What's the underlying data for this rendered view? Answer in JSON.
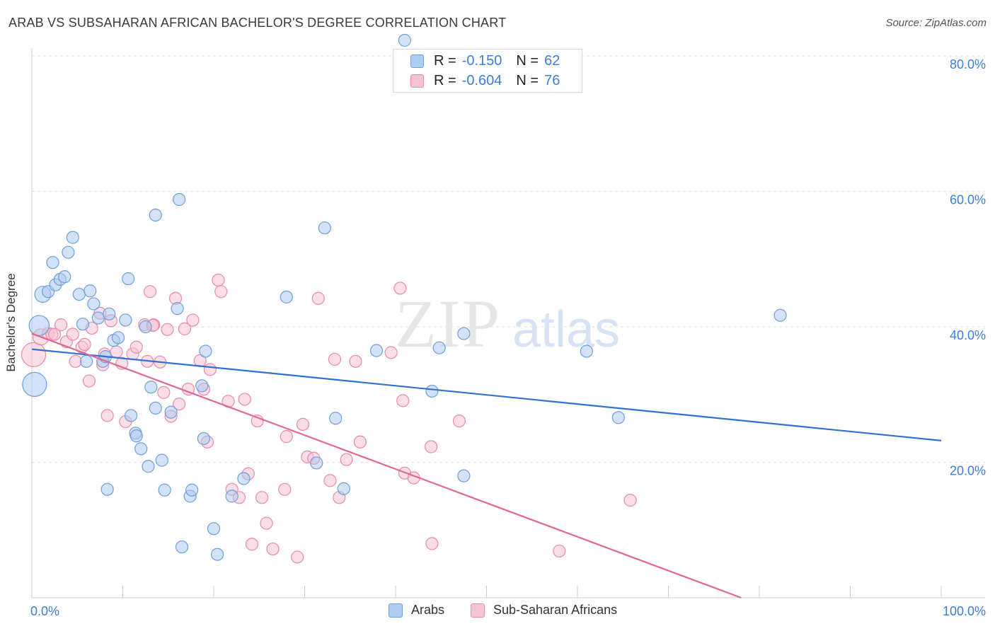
{
  "header": {
    "title": "ARAB VS SUBSAHARAN AFRICAN BACHELOR'S DEGREE CORRELATION CHART",
    "source": "Source: ZipAtlas.com"
  },
  "watermark": {
    "zip": "ZIP",
    "atlas": "atlas"
  },
  "legend": {
    "rows": [
      {
        "r_label": "R = ",
        "r_value": "-0.150",
        "n_label": "N = ",
        "n_value": "62"
      },
      {
        "r_label": "R = ",
        "r_value": "-0.604",
        "n_label": "N = ",
        "n_value": "76"
      }
    ]
  },
  "colors": {
    "arabs_fill": "#aecbf0",
    "arabs_stroke": "#6d9fdc",
    "arabs_line": "#2f72d2",
    "ssa_fill": "#f6c3d3",
    "ssa_stroke": "#e98aa9",
    "ssa_line": "#e0678f",
    "tick_label": "#3a7fd9",
    "grid": "#e0e0e0"
  },
  "chart_data": {
    "type": "scatter",
    "title": "ARAB VS SUBSAHARAN AFRICAN BACHELOR'S DEGREE CORRELATION CHART",
    "xlabel": "",
    "ylabel": "Bachelor's Degree",
    "xlim": [
      0,
      100
    ],
    "ylim": [
      0,
      80
    ],
    "x_tick_labels": [
      "0.0%",
      "100.0%"
    ],
    "y_ticks": [
      20,
      40,
      60,
      80
    ],
    "y_tick_labels": [
      "20.0%",
      "40.0%",
      "60.0%",
      "80.0%"
    ],
    "grid": true,
    "legend_position": "bottom",
    "series": [
      {
        "name": "Arabs",
        "trend": {
          "x0": 0,
          "y0": 36.7,
          "x1": 100,
          "y1": 23.2
        },
        "points": [
          [
            0.3,
            31.5,
            3
          ],
          [
            0.8,
            40.2,
            2.5
          ],
          [
            1.2,
            44.8,
            2
          ],
          [
            1.8,
            45.2,
            1.5
          ],
          [
            2.3,
            49.5,
            1.5
          ],
          [
            2.6,
            46.2,
            1.5
          ],
          [
            3.1,
            47.0,
            1.5
          ],
          [
            3.6,
            47.4,
            1.5
          ],
          [
            4.0,
            51.0,
            1.5
          ],
          [
            4.5,
            53.2,
            1.5
          ],
          [
            5.2,
            44.8,
            1.5
          ],
          [
            5.6,
            40.4,
            1.5
          ],
          [
            6.0,
            34.9,
            1.5
          ],
          [
            6.4,
            45.3,
            1.5
          ],
          [
            6.8,
            43.4,
            1.5
          ],
          [
            7.3,
            41.3,
            1.5
          ],
          [
            7.8,
            34.9,
            1.5
          ],
          [
            8.1,
            35.6,
            1.5
          ],
          [
            8.5,
            41.9,
            1.5
          ],
          [
            9.0,
            38.0,
            1.5
          ],
          [
            9.5,
            38.4,
            1.5
          ],
          [
            10.3,
            41.0,
            1.5
          ],
          [
            10.6,
            47.1,
            1.5
          ],
          [
            10.9,
            26.9,
            1.5
          ],
          [
            11.4,
            24.3,
            1.5
          ],
          [
            12.0,
            22.0,
            1.5
          ],
          [
            12.5,
            40.0,
            1.5
          ],
          [
            12.8,
            19.4,
            1.5
          ],
          [
            13.1,
            31.1,
            1.5
          ],
          [
            13.6,
            28.0,
            1.5
          ],
          [
            13.6,
            56.5,
            1.5
          ],
          [
            14.3,
            20.3,
            1.5
          ],
          [
            14.6,
            15.9,
            1.5
          ],
          [
            15.3,
            27.4,
            1.5
          ],
          [
            16.0,
            42.7,
            1.5
          ],
          [
            16.2,
            58.8,
            1.5
          ],
          [
            16.5,
            7.5,
            1.5
          ],
          [
            17.4,
            15.0,
            1.5
          ],
          [
            17.6,
            15.9,
            1.5
          ],
          [
            18.7,
            31.3,
            1.5
          ],
          [
            18.9,
            23.5,
            1.5
          ],
          [
            19.1,
            36.4,
            1.5
          ],
          [
            20.0,
            10.2,
            1.5
          ],
          [
            20.4,
            6.4,
            1.5
          ],
          [
            22.0,
            15.0,
            1.5
          ],
          [
            23.3,
            17.6,
            1.5
          ],
          [
            8.3,
            16.0,
            1.5
          ],
          [
            11.5,
            23.9,
            1.5
          ],
          [
            28.0,
            44.4,
            1.5
          ],
          [
            31.3,
            19.9,
            1.5
          ],
          [
            32.2,
            54.6,
            1.5
          ],
          [
            33.4,
            26.5,
            1.5
          ],
          [
            34.3,
            16.1,
            1.5
          ],
          [
            37.9,
            36.5,
            1.5
          ],
          [
            41.0,
            82.3,
            1.5
          ],
          [
            44.0,
            30.5,
            1.5
          ],
          [
            44.8,
            36.9,
            1.5
          ],
          [
            47.5,
            39.0,
            1.5
          ],
          [
            47.5,
            18.0,
            1.5
          ],
          [
            61.0,
            36.4,
            1.5
          ],
          [
            64.5,
            26.6,
            1.5
          ],
          [
            82.3,
            41.7,
            1.5
          ]
        ]
      },
      {
        "name": "Sub-Saharan Africans",
        "trend": {
          "x0": 0,
          "y0": 39.0,
          "x1": 78,
          "y1": 0
        },
        "points": [
          [
            0.2,
            35.9,
            3
          ],
          [
            1.0,
            38.5,
            2
          ],
          [
            1.8,
            39.0,
            1.5
          ],
          [
            2.2,
            38.9,
            1.5
          ],
          [
            2.5,
            38.9,
            1.5
          ],
          [
            3.2,
            40.3,
            1.5
          ],
          [
            3.8,
            37.8,
            1.5
          ],
          [
            4.5,
            38.9,
            1.5
          ],
          [
            4.8,
            34.9,
            1.5
          ],
          [
            5.5,
            37.0,
            1.5
          ],
          [
            5.8,
            37.4,
            1.5
          ],
          [
            6.3,
            32.0,
            1.5
          ],
          [
            6.6,
            39.8,
            1.5
          ],
          [
            7.5,
            42.0,
            1.5
          ],
          [
            7.8,
            34.4,
            1.5
          ],
          [
            8.0,
            36.0,
            1.5
          ],
          [
            8.3,
            26.9,
            1.5
          ],
          [
            8.7,
            40.9,
            1.5
          ],
          [
            9.3,
            36.3,
            1.5
          ],
          [
            9.9,
            34.6,
            1.5
          ],
          [
            10.3,
            26.0,
            1.5
          ],
          [
            11.1,
            36.0,
            1.5
          ],
          [
            11.5,
            37.0,
            1.5
          ],
          [
            12.4,
            40.3,
            1.5
          ],
          [
            12.7,
            34.9,
            1.5
          ],
          [
            13.0,
            45.2,
            1.5
          ],
          [
            13.4,
            40.3,
            1.5
          ],
          [
            14.1,
            34.8,
            1.5
          ],
          [
            14.5,
            30.3,
            1.5
          ],
          [
            14.9,
            39.6,
            1.5
          ],
          [
            15.3,
            26.8,
            1.5
          ],
          [
            15.8,
            44.2,
            1.5
          ],
          [
            16.2,
            28.6,
            1.5
          ],
          [
            16.8,
            39.7,
            1.5
          ],
          [
            17.2,
            30.8,
            1.5
          ],
          [
            17.7,
            41.0,
            1.5
          ],
          [
            18.5,
            35.0,
            1.5
          ],
          [
            18.9,
            30.8,
            1.5
          ],
          [
            19.3,
            23.0,
            1.5
          ],
          [
            19.6,
            33.7,
            1.5
          ],
          [
            20.5,
            46.9,
            1.5
          ],
          [
            20.8,
            45.2,
            1.5
          ],
          [
            21.6,
            29.0,
            1.5
          ],
          [
            22.0,
            16.0,
            1.5
          ],
          [
            22.8,
            14.8,
            1.5
          ],
          [
            23.4,
            29.3,
            1.5
          ],
          [
            23.8,
            18.3,
            1.5
          ],
          [
            24.2,
            7.9,
            1.5
          ],
          [
            24.8,
            26.1,
            1.5
          ],
          [
            25.3,
            14.8,
            1.5
          ],
          [
            25.8,
            11.0,
            1.5
          ],
          [
            26.5,
            7.2,
            1.5
          ],
          [
            27.8,
            16.0,
            1.5
          ],
          [
            28.0,
            23.8,
            1.5
          ],
          [
            29.2,
            6.0,
            1.5
          ],
          [
            29.8,
            25.6,
            1.5
          ],
          [
            30.3,
            20.8,
            1.5
          ],
          [
            31.0,
            20.6,
            1.5
          ],
          [
            31.5,
            44.2,
            1.5
          ],
          [
            32.8,
            17.3,
            1.5
          ],
          [
            33.3,
            35.2,
            1.5
          ],
          [
            33.8,
            14.8,
            1.5
          ],
          [
            34.6,
            20.4,
            1.5
          ],
          [
            35.6,
            34.9,
            1.5
          ],
          [
            36.1,
            23.0,
            1.5
          ],
          [
            39.5,
            36.2,
            1.5
          ],
          [
            40.5,
            45.7,
            1.5
          ],
          [
            40.8,
            29.1,
            1.5
          ],
          [
            41.0,
            18.4,
            1.5
          ],
          [
            42.0,
            17.7,
            1.5
          ],
          [
            43.9,
            22.3,
            1.5
          ],
          [
            44.0,
            8.0,
            1.5
          ],
          [
            47.0,
            26.1,
            1.5
          ],
          [
            58.0,
            6.9,
            1.5
          ],
          [
            65.8,
            14.4,
            1.5
          ],
          [
            13.3,
            40.2,
            1.5
          ]
        ]
      }
    ]
  }
}
